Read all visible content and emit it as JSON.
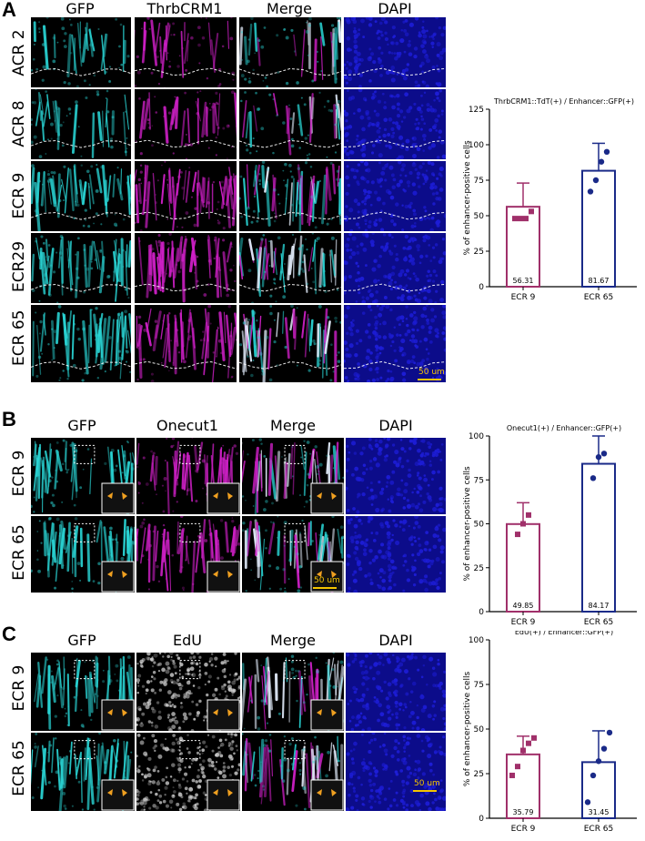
{
  "panels": [
    {
      "label": "A",
      "columns": [
        "GFP",
        "ThrbCRM1",
        "Merge",
        "DAPI"
      ],
      "rows": [
        "ACR 2",
        "ACR 8",
        "ECR 9",
        "ECR29",
        "ECR 65"
      ],
      "scale_bar": "50 um"
    },
    {
      "label": "B",
      "columns": [
        "GFP",
        "Onecut1",
        "Merge",
        "DAPI"
      ],
      "rows": [
        "ECR 9",
        "ECR 65"
      ],
      "scale_bar": "50 um"
    },
    {
      "label": "C",
      "columns": [
        "GFP",
        "EdU",
        "Merge",
        "DAPI"
      ],
      "rows": [
        "ECR 9",
        "ECR 65"
      ],
      "scale_bar": "50 um"
    }
  ],
  "colors": {
    "gfp": "#2ad6d6",
    "magenta": "#d020c8",
    "edu": "#cfcfcf",
    "dapi": "#1d1dd6",
    "ecr9": "#a0306a",
    "ecr65": "#1a2a88",
    "arrow": "#f0a020"
  },
  "chart_data": [
    {
      "type": "bar",
      "title": "ThrbCRM1::TdT(+) / Enhancer::GFP(+)",
      "categories": [
        "ECR 9",
        "ECR 65"
      ],
      "values": [
        56.31,
        81.67
      ],
      "value_labels": [
        "56.31",
        "81.67"
      ],
      "error_upper": [
        73,
        101
      ],
      "points": [
        [
          48,
          48,
          48,
          53
        ],
        [
          67,
          75,
          88,
          95
        ]
      ],
      "ylabel": "% of enhancer-positive cells",
      "ylim": [
        0,
        125
      ],
      "yticks": [
        "0",
        "25",
        "50",
        "75",
        "100",
        "125"
      ]
    },
    {
      "type": "bar",
      "title": "Onecut1(+) / Enhancer::GFP(+)",
      "categories": [
        "ECR 9",
        "ECR 65"
      ],
      "values": [
        49.85,
        84.17
      ],
      "value_labels": [
        "49.85",
        "84.17"
      ],
      "error_upper": [
        62,
        100
      ],
      "points": [
        [
          44,
          50,
          55
        ],
        [
          76,
          88,
          90
        ]
      ],
      "ylabel": "% of enhancer-positive cells",
      "ylim": [
        0,
        100
      ],
      "yticks": [
        "0",
        "25",
        "50",
        "75",
        "100"
      ]
    },
    {
      "type": "bar",
      "title": "EdU(+) / Enhancer::GFP(+)",
      "categories": [
        "ECR 9",
        "ECR 65"
      ],
      "values": [
        35.79,
        31.45
      ],
      "value_labels": [
        "35.79",
        "31.45"
      ],
      "error_upper": [
        46,
        49
      ],
      "points": [
        [
          24,
          29,
          38,
          42,
          45
        ],
        [
          9,
          24,
          32,
          39,
          48
        ]
      ],
      "ylabel": "% of enhancer-positive cells",
      "ylim": [
        0,
        100
      ],
      "yticks": [
        "0",
        "25",
        "50",
        "75",
        "100"
      ]
    }
  ]
}
